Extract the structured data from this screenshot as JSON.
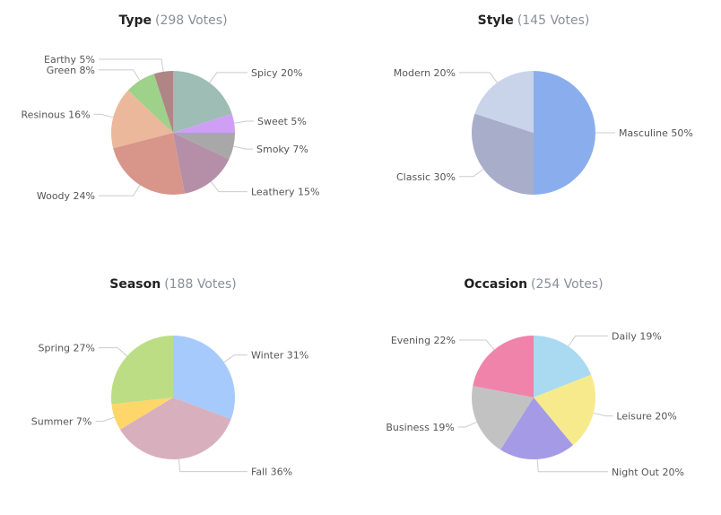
{
  "chart_data": [
    {
      "type": "pie",
      "title": "Type",
      "subtitle": "(298 Votes)",
      "slices": [
        {
          "label": "Spicy",
          "display": "Spicy 20%",
          "value": 20,
          "color": "#9dbdb5"
        },
        {
          "label": "Sweet",
          "display": "Sweet 5%",
          "value": 5,
          "color": "#cf9ff5"
        },
        {
          "label": "Smoky",
          "display": "Smoky 7%",
          "value": 7,
          "color": "#a8a8a8"
        },
        {
          "label": "Leathery",
          "display": "Leathery 15%",
          "value": 15,
          "color": "#b58fa8"
        },
        {
          "label": "Woody",
          "display": "Woody 24%",
          "value": 24,
          "color": "#d8958a"
        },
        {
          "label": "Resinous",
          "display": "Resinous 16%",
          "value": 16,
          "color": "#ebb89c"
        },
        {
          "label": "Green",
          "display": "Green 8%",
          "value": 8,
          "color": "#9ed18a"
        },
        {
          "label": "Earthy",
          "display": "Earthy 5%",
          "value": 5,
          "color": "#b08585"
        }
      ]
    },
    {
      "type": "pie",
      "title": "Style",
      "subtitle": "(145 Votes)",
      "slices": [
        {
          "label": "Masculine",
          "display": "Masculine 50%",
          "value": 50,
          "color": "#8aaeed"
        },
        {
          "label": "Classic",
          "display": "Classic 30%",
          "value": 30,
          "color": "#a8adc9"
        },
        {
          "label": "Modern",
          "display": "Modern 20%",
          "value": 20,
          "color": "#c9d4ea"
        }
      ]
    },
    {
      "type": "pie",
      "title": "Season",
      "subtitle": "(188 Votes)",
      "slices": [
        {
          "label": "Winter",
          "display": "Winter 31%",
          "value": 31,
          "color": "#a6cafb"
        },
        {
          "label": "Fall",
          "display": "Fall 36%",
          "value": 36,
          "color": "#d8b0bd"
        },
        {
          "label": "Summer",
          "display": "Summer 7%",
          "value": 7,
          "color": "#fed66a"
        },
        {
          "label": "Spring",
          "display": "Spring 27%",
          "value": 27,
          "color": "#bcdd84"
        }
      ]
    },
    {
      "type": "pie",
      "title": "Occasion",
      "subtitle": "(254 Votes)",
      "slices": [
        {
          "label": "Daily",
          "display": "Daily 19%",
          "value": 19,
          "color": "#a9daf2"
        },
        {
          "label": "Leisure",
          "display": "Leisure 20%",
          "value": 20,
          "color": "#f6ea8c"
        },
        {
          "label": "Night Out",
          "display": "Night Out 20%",
          "value": 20,
          "color": "#a59ae6"
        },
        {
          "label": "Business",
          "display": "Business 19%",
          "value": 19,
          "color": "#c2c2c2"
        },
        {
          "label": "Evening",
          "display": "Evening 22%",
          "value": 22,
          "color": "#f083aa"
        }
      ]
    }
  ]
}
